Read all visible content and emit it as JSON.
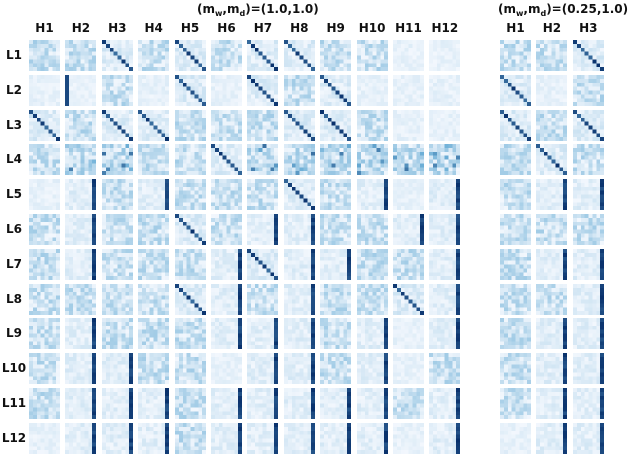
{
  "groups": [
    {
      "title_prefix": "(m",
      "title_sub_w": "w",
      "title_mid": ",m",
      "title_sub_d": "d",
      "title_suffix": ")=(1.0,1.0)",
      "heads": [
        "H1",
        "H2",
        "H3",
        "H4",
        "H5",
        "H6",
        "H7",
        "H8",
        "H9",
        "H10",
        "H11",
        "H12"
      ]
    },
    {
      "title_prefix": "(m",
      "title_sub_w": "w",
      "title_mid": ",m",
      "title_sub_d": "d",
      "title_suffix": ")=(0.25,1.0)",
      "heads": [
        "H1",
        "H2",
        "H3"
      ]
    }
  ],
  "layers": [
    "L1",
    "L2",
    "L3",
    "L4",
    "L5",
    "L6",
    "L7",
    "L8",
    "L9",
    "L10",
    "L11",
    "L12"
  ],
  "colors": {
    "low": "#f2f7fd",
    "mid": "#6baed6",
    "high": "#08306b"
  },
  "attention_patterns": {
    "group1": [
      [
        "diffuse",
        "diffuse",
        "diagonal",
        "diffuse",
        "diagonal",
        "diffuse",
        "diagonal",
        "diagonal",
        "diffuse",
        "diffuse",
        "faint",
        "faint"
      ],
      [
        "faint",
        "first-column",
        "diffuse",
        "faint",
        "diagonal",
        "faint",
        "diagonal",
        "diffuse",
        "diagonal",
        "faint",
        "faint",
        "faint"
      ],
      [
        "diagonal",
        "diffuse",
        "diagonal",
        "diagonal",
        "diffuse",
        "diffuse",
        "diffuse",
        "diagonal",
        "diagonal",
        "diffuse",
        "faint",
        "faint"
      ],
      [
        "diffuse",
        "mixed",
        "mixed",
        "diffuse",
        "diffuse",
        "diagonal",
        "mixed",
        "mixed",
        "mixed",
        "mixed",
        "mixed",
        "mixed"
      ],
      [
        "faint",
        "last-column",
        "diffuse",
        "last-column",
        "diffuse",
        "diffuse",
        "diffuse",
        "diagonal",
        "diffuse",
        "last-column",
        "faint",
        "last-column"
      ],
      [
        "diffuse",
        "last-column",
        "diffuse",
        "diffuse",
        "diagonal",
        "diffuse",
        "last-column",
        "last-column",
        "diffuse",
        "diffuse",
        "last-column",
        "last-column"
      ],
      [
        "diffuse",
        "last-column",
        "diffuse",
        "diffuse",
        "diffuse",
        "last-column",
        "diagonal",
        "last-column",
        "last-column",
        "diffuse",
        "diffuse",
        "last-column"
      ],
      [
        "diffuse",
        "diffuse",
        "diffuse",
        "diffuse",
        "diagonal",
        "last-column",
        "diffuse",
        "last-column",
        "diffuse",
        "diffuse",
        "diagonal",
        "last-column"
      ],
      [
        "diffuse",
        "last-column",
        "diffuse",
        "diffuse",
        "diffuse",
        "last-column",
        "last-column",
        "last-column",
        "diffuse",
        "last-column",
        "faint",
        "last-column"
      ],
      [
        "diffuse",
        "last-column",
        "last-column",
        "diffuse",
        "diffuse",
        "faint",
        "last-column",
        "last-column",
        "diffuse",
        "last-column",
        "faint",
        "diffuse"
      ],
      [
        "diffuse",
        "last-column",
        "last-column",
        "last-column",
        "diffuse",
        "last-column",
        "last-column",
        "last-column",
        "last-column",
        "last-column",
        "diffuse",
        "last-column"
      ],
      [
        "faint",
        "last-column",
        "last-column",
        "last-column",
        "diffuse",
        "last-column",
        "last-column",
        "last-column",
        "last-column",
        "last-column",
        "faint",
        "last-column"
      ]
    ],
    "group2": [
      [
        "diffuse",
        "diffuse",
        "diagonal"
      ],
      [
        "diagonal",
        "faint",
        "diffuse"
      ],
      [
        "diagonal",
        "diffuse",
        "diagonal"
      ],
      [
        "diffuse",
        "diagonal",
        "diffuse"
      ],
      [
        "diffuse",
        "last-column",
        "last-column"
      ],
      [
        "diffuse",
        "diffuse",
        "diffuse"
      ],
      [
        "diffuse",
        "last-column",
        "last-column"
      ],
      [
        "diffuse",
        "diffuse",
        "last-column"
      ],
      [
        "diffuse",
        "last-column",
        "last-column"
      ],
      [
        "diffuse",
        "last-column",
        "last-column"
      ],
      [
        "diffuse",
        "last-column",
        "last-column"
      ],
      [
        "faint",
        "last-column",
        "last-column"
      ]
    ]
  }
}
